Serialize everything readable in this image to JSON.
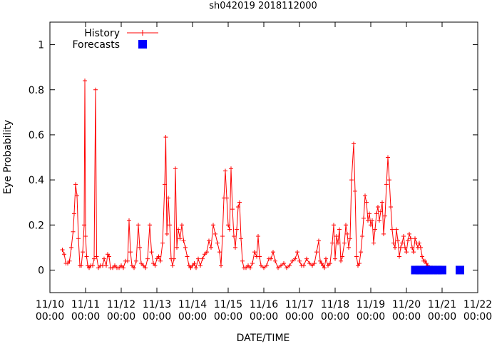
{
  "chart_data": {
    "type": "line",
    "title": "sh042019 2018112000",
    "xlabel": "DATE/TIME",
    "ylabel": "Eye Probability",
    "xlim": [
      0,
      12
    ],
    "ylim": [
      -0.1,
      1.1
    ],
    "x_ticks": [
      {
        "x": 0,
        "l1": "11/10",
        "l2": "00:00"
      },
      {
        "x": 1,
        "l1": "11/11",
        "l2": "00:00"
      },
      {
        "x": 2,
        "l1": "11/12",
        "l2": "00:00"
      },
      {
        "x": 3,
        "l1": "11/13",
        "l2": "00:00"
      },
      {
        "x": 4,
        "l1": "11/14",
        "l2": "00:00"
      },
      {
        "x": 5,
        "l1": "11/15",
        "l2": "00:00"
      },
      {
        "x": 6,
        "l1": "11/16",
        "l2": "00:00"
      },
      {
        "x": 7,
        "l1": "11/17",
        "l2": "00:00"
      },
      {
        "x": 8,
        "l1": "11/18",
        "l2": "00:00"
      },
      {
        "x": 9,
        "l1": "11/19",
        "l2": "00:00"
      },
      {
        "x": 10,
        "l1": "11/20",
        "l2": "00:00"
      },
      {
        "x": 11,
        "l1": "11/21",
        "l2": "00:00"
      },
      {
        "x": 12,
        "l1": "11/22",
        "l2": "00:00"
      }
    ],
    "y_ticks": [
      {
        "v": 0,
        "label": "0"
      },
      {
        "v": 0.2,
        "label": "0.2"
      },
      {
        "v": 0.4,
        "label": "0.4"
      },
      {
        "v": 0.6,
        "label": "0.6"
      },
      {
        "v": 0.8,
        "label": "0.8"
      },
      {
        "v": 1.0,
        "label": "1"
      }
    ],
    "legend": {
      "position": "top-left",
      "history_label": "History",
      "forecast_label": "Forecasts"
    },
    "colors": {
      "history": "#ff0000",
      "forecast": "#0000ff",
      "axis": "#000000"
    },
    "series": [
      {
        "name": "History",
        "style": "line-plus",
        "points": [
          [
            0.35,
            0.09
          ],
          [
            0.4,
            0.07
          ],
          [
            0.45,
            0.03
          ],
          [
            0.5,
            0.03
          ],
          [
            0.55,
            0.04
          ],
          [
            0.6,
            0.1
          ],
          [
            0.65,
            0.17
          ],
          [
            0.68,
            0.25
          ],
          [
            0.72,
            0.38
          ],
          [
            0.76,
            0.33
          ],
          [
            0.8,
            0.14
          ],
          [
            0.84,
            0.02
          ],
          [
            0.88,
            0.02
          ],
          [
            0.92,
            0.08
          ],
          [
            0.96,
            0.2
          ],
          [
            0.98,
            0.84
          ],
          [
            1.0,
            0.15
          ],
          [
            1.03,
            0.06
          ],
          [
            1.06,
            0.02
          ],
          [
            1.1,
            0.01
          ],
          [
            1.15,
            0.02
          ],
          [
            1.2,
            0.02
          ],
          [
            1.24,
            0.05
          ],
          [
            1.28,
            0.8
          ],
          [
            1.31,
            0.06
          ],
          [
            1.36,
            0.01
          ],
          [
            1.42,
            0.02
          ],
          [
            1.48,
            0.02
          ],
          [
            1.52,
            0.05
          ],
          [
            1.58,
            0.02
          ],
          [
            1.62,
            0.07
          ],
          [
            1.66,
            0.06
          ],
          [
            1.7,
            0.01
          ],
          [
            1.76,
            0.01
          ],
          [
            1.82,
            0.02
          ],
          [
            1.88,
            0.01
          ],
          [
            1.94,
            0.01
          ],
          [
            2.0,
            0.02
          ],
          [
            2.06,
            0.01
          ],
          [
            2.12,
            0.04
          ],
          [
            2.18,
            0.04
          ],
          [
            2.22,
            0.22
          ],
          [
            2.26,
            0.08
          ],
          [
            2.3,
            0.02
          ],
          [
            2.36,
            0.01
          ],
          [
            2.42,
            0.04
          ],
          [
            2.48,
            0.2
          ],
          [
            2.52,
            0.1
          ],
          [
            2.56,
            0.03
          ],
          [
            2.62,
            0.02
          ],
          [
            2.68,
            0.01
          ],
          [
            2.74,
            0.05
          ],
          [
            2.8,
            0.2
          ],
          [
            2.85,
            0.08
          ],
          [
            2.9,
            0.03
          ],
          [
            2.95,
            0.02
          ],
          [
            3.0,
            0.05
          ],
          [
            3.05,
            0.06
          ],
          [
            3.1,
            0.04
          ],
          [
            3.16,
            0.12
          ],
          [
            3.22,
            0.38
          ],
          [
            3.25,
            0.59
          ],
          [
            3.28,
            0.16
          ],
          [
            3.32,
            0.32
          ],
          [
            3.36,
            0.2
          ],
          [
            3.4,
            0.05
          ],
          [
            3.44,
            0.02
          ],
          [
            3.48,
            0.05
          ],
          [
            3.52,
            0.45
          ],
          [
            3.56,
            0.1
          ],
          [
            3.6,
            0.18
          ],
          [
            3.65,
            0.14
          ],
          [
            3.7,
            0.2
          ],
          [
            3.75,
            0.13
          ],
          [
            3.8,
            0.1
          ],
          [
            3.85,
            0.06
          ],
          [
            3.9,
            0.02
          ],
          [
            3.95,
            0.01
          ],
          [
            4.0,
            0.02
          ],
          [
            4.05,
            0.03
          ],
          [
            4.1,
            0.01
          ],
          [
            4.16,
            0.05
          ],
          [
            4.22,
            0.02
          ],
          [
            4.28,
            0.05
          ],
          [
            4.34,
            0.07
          ],
          [
            4.4,
            0.08
          ],
          [
            4.46,
            0.13
          ],
          [
            4.52,
            0.1
          ],
          [
            4.58,
            0.2
          ],
          [
            4.64,
            0.16
          ],
          [
            4.7,
            0.12
          ],
          [
            4.76,
            0.08
          ],
          [
            4.8,
            0.02
          ],
          [
            4.84,
            0.15
          ],
          [
            4.88,
            0.32
          ],
          [
            4.92,
            0.44
          ],
          [
            4.96,
            0.32
          ],
          [
            5.0,
            0.2
          ],
          [
            5.04,
            0.18
          ],
          [
            5.08,
            0.45
          ],
          [
            5.12,
            0.27
          ],
          [
            5.16,
            0.15
          ],
          [
            5.2,
            0.1
          ],
          [
            5.24,
            0.18
          ],
          [
            5.28,
            0.28
          ],
          [
            5.32,
            0.3
          ],
          [
            5.36,
            0.14
          ],
          [
            5.4,
            0.04
          ],
          [
            5.44,
            0.01
          ],
          [
            5.5,
            0.01
          ],
          [
            5.56,
            0.02
          ],
          [
            5.62,
            0.01
          ],
          [
            5.68,
            0.03
          ],
          [
            5.74,
            0.08
          ],
          [
            5.8,
            0.06
          ],
          [
            5.84,
            0.15
          ],
          [
            5.88,
            0.06
          ],
          [
            5.92,
            0.02
          ],
          [
            6.0,
            0.01
          ],
          [
            6.08,
            0.02
          ],
          [
            6.14,
            0.05
          ],
          [
            6.2,
            0.05
          ],
          [
            6.26,
            0.08
          ],
          [
            6.32,
            0.04
          ],
          [
            6.4,
            0.01
          ],
          [
            6.48,
            0.02
          ],
          [
            6.56,
            0.03
          ],
          [
            6.64,
            0.01
          ],
          [
            6.72,
            0.02
          ],
          [
            6.8,
            0.04
          ],
          [
            6.88,
            0.05
          ],
          [
            6.94,
            0.08
          ],
          [
            7.0,
            0.04
          ],
          [
            7.06,
            0.02
          ],
          [
            7.12,
            0.02
          ],
          [
            7.2,
            0.05
          ],
          [
            7.28,
            0.03
          ],
          [
            7.36,
            0.02
          ],
          [
            7.42,
            0.03
          ],
          [
            7.48,
            0.08
          ],
          [
            7.54,
            0.13
          ],
          [
            7.58,
            0.04
          ],
          [
            7.62,
            0.03
          ],
          [
            7.66,
            0.02
          ],
          [
            7.7,
            0.01
          ],
          [
            7.74,
            0.05
          ],
          [
            7.8,
            0.02
          ],
          [
            7.86,
            0.03
          ],
          [
            7.92,
            0.12
          ],
          [
            7.96,
            0.2
          ],
          [
            8.0,
            0.05
          ],
          [
            8.04,
            0.15
          ],
          [
            8.08,
            0.12
          ],
          [
            8.12,
            0.18
          ],
          [
            8.16,
            0.04
          ],
          [
            8.2,
            0.06
          ],
          [
            8.26,
            0.12
          ],
          [
            8.3,
            0.2
          ],
          [
            8.34,
            0.16
          ],
          [
            8.38,
            0.1
          ],
          [
            8.42,
            0.14
          ],
          [
            8.46,
            0.4
          ],
          [
            8.52,
            0.56
          ],
          [
            8.56,
            0.35
          ],
          [
            8.6,
            0.06
          ],
          [
            8.64,
            0.02
          ],
          [
            8.68,
            0.03
          ],
          [
            8.72,
            0.08
          ],
          [
            8.76,
            0.15
          ],
          [
            8.8,
            0.23
          ],
          [
            8.84,
            0.33
          ],
          [
            8.88,
            0.3
          ],
          [
            8.92,
            0.22
          ],
          [
            8.96,
            0.25
          ],
          [
            9.0,
            0.2
          ],
          [
            9.04,
            0.22
          ],
          [
            9.08,
            0.12
          ],
          [
            9.12,
            0.18
          ],
          [
            9.16,
            0.25
          ],
          [
            9.2,
            0.28
          ],
          [
            9.24,
            0.22
          ],
          [
            9.28,
            0.26
          ],
          [
            9.32,
            0.3
          ],
          [
            9.36,
            0.16
          ],
          [
            9.4,
            0.24
          ],
          [
            9.44,
            0.38
          ],
          [
            9.48,
            0.5
          ],
          [
            9.52,
            0.4
          ],
          [
            9.56,
            0.28
          ],
          [
            9.6,
            0.18
          ],
          [
            9.64,
            0.12
          ],
          [
            9.68,
            0.1
          ],
          [
            9.72,
            0.18
          ],
          [
            9.76,
            0.13
          ],
          [
            9.8,
            0.06
          ],
          [
            9.84,
            0.1
          ],
          [
            9.88,
            0.12
          ],
          [
            9.92,
            0.15
          ],
          [
            9.96,
            0.1
          ],
          [
            10.0,
            0.08
          ],
          [
            10.04,
            0.13
          ],
          [
            10.08,
            0.16
          ],
          [
            10.12,
            0.14
          ],
          [
            10.16,
            0.1
          ],
          [
            10.2,
            0.08
          ],
          [
            10.24,
            0.14
          ],
          [
            10.28,
            0.12
          ],
          [
            10.32,
            0.1
          ],
          [
            10.36,
            0.12
          ],
          [
            10.4,
            0.1
          ],
          [
            10.44,
            0.06
          ],
          [
            10.48,
            0.04
          ],
          [
            10.52,
            0.04
          ],
          [
            10.56,
            0.03
          ],
          [
            10.6,
            0.02
          ],
          [
            10.64,
            0.01
          ],
          [
            10.68,
            0.01
          ],
          [
            10.72,
            0.01
          ],
          [
            10.76,
            0.0
          ],
          [
            10.8,
            0.0
          ],
          [
            10.84,
            0.0
          ],
          [
            10.88,
            0.0
          ],
          [
            10.92,
            0.0
          ],
          [
            10.96,
            0.0
          ]
        ]
      },
      {
        "name": "Forecasts",
        "style": "square",
        "points": [
          [
            10.25,
            0.0
          ],
          [
            10.37,
            0.0
          ],
          [
            10.5,
            0.0
          ],
          [
            10.62,
            0.0
          ],
          [
            10.75,
            0.0
          ],
          [
            10.87,
            0.0
          ],
          [
            11.0,
            0.0
          ],
          [
            11.5,
            0.0
          ]
        ]
      }
    ]
  }
}
